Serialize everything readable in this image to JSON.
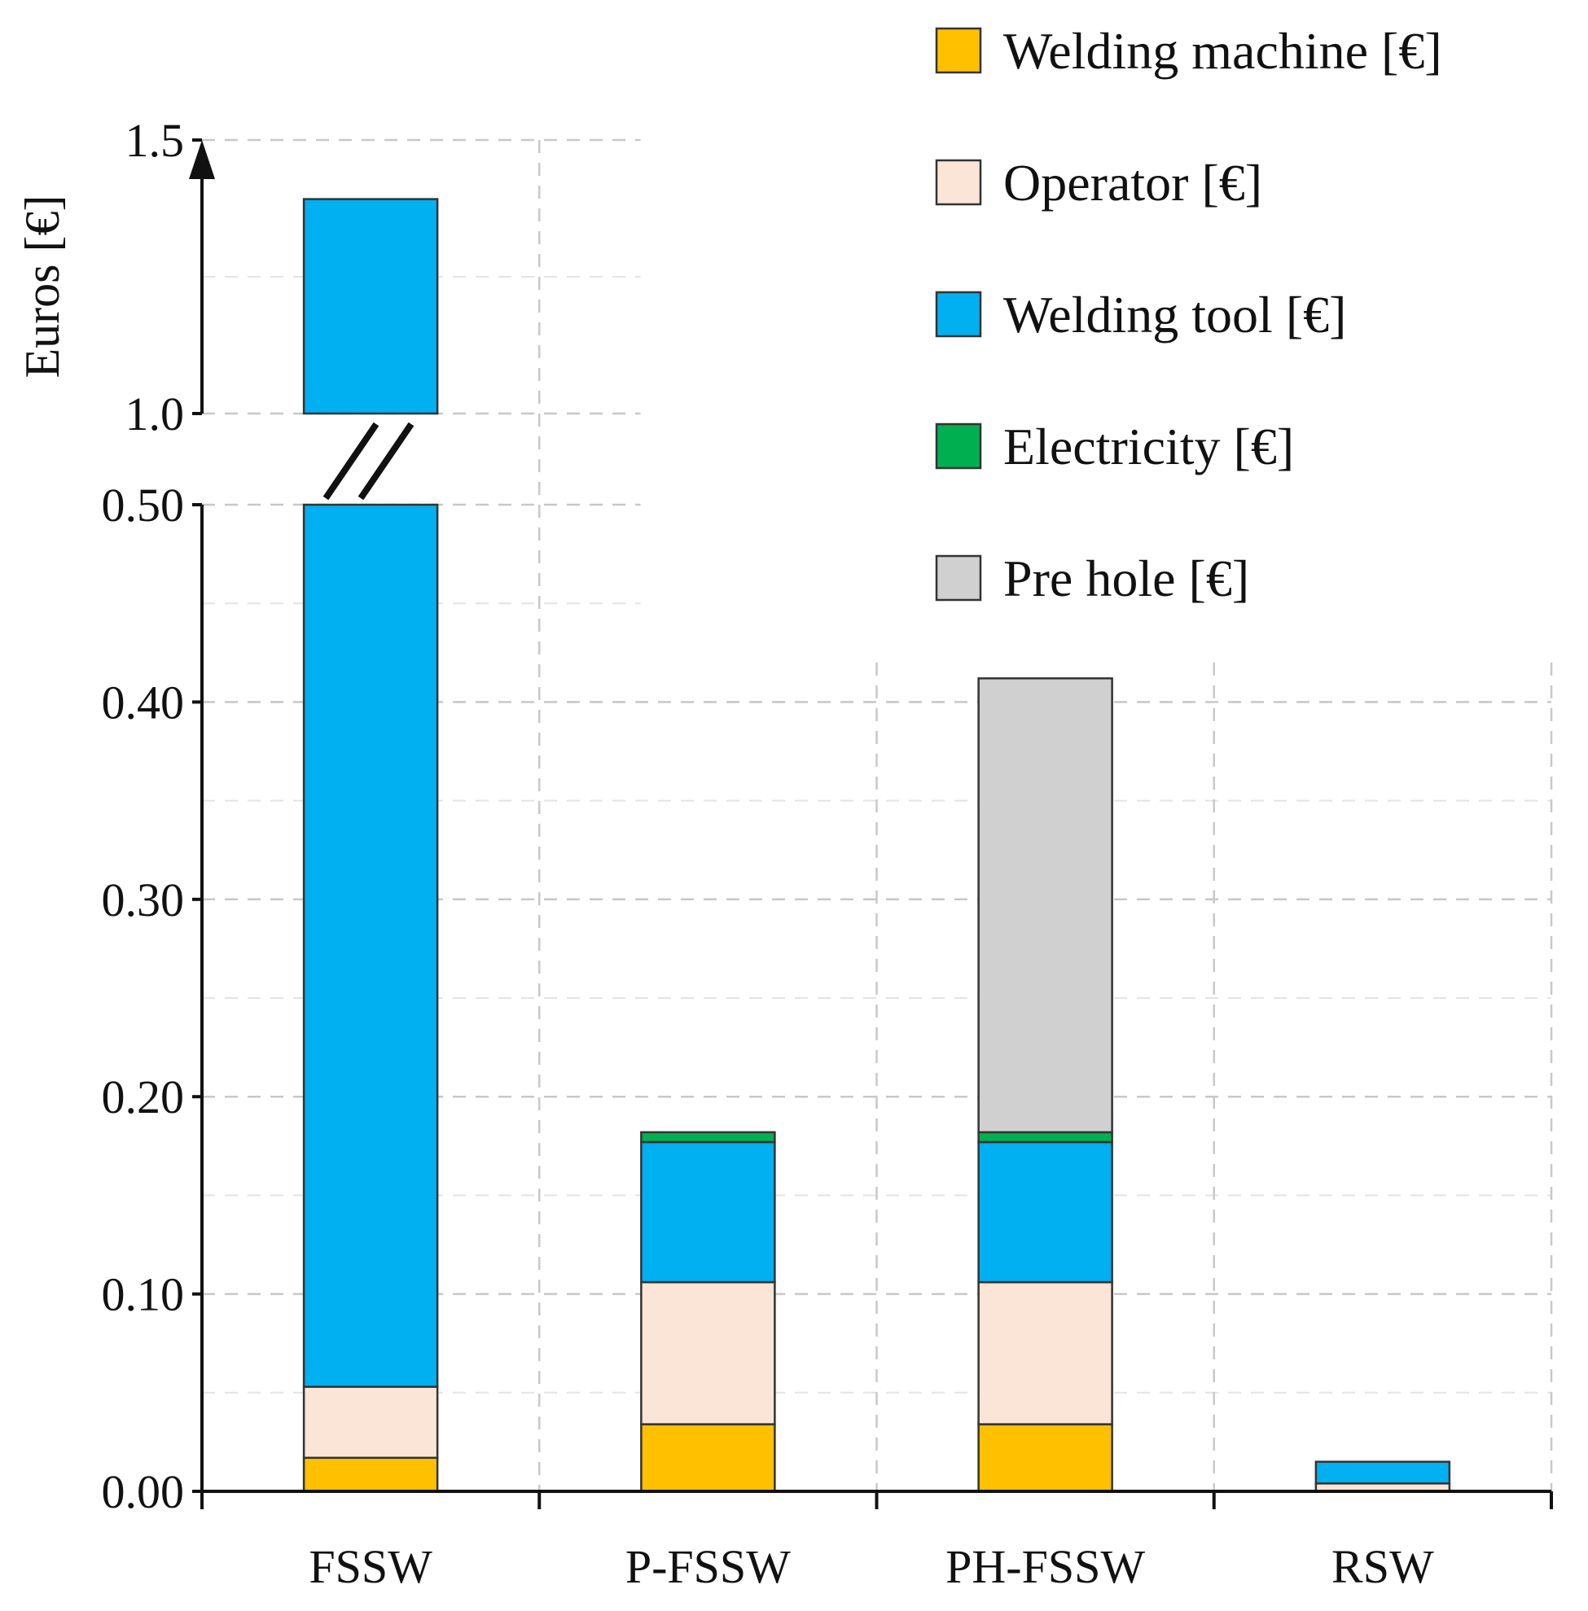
{
  "chart_data": {
    "type": "bar",
    "stacked": true,
    "broken_y_axis": true,
    "title": "",
    "xlabel": "",
    "ylabel": "Euros [€]",
    "categories": [
      "FSSW",
      "P-FSSW",
      "PH-FSSW",
      "RSW"
    ],
    "ylim_lower": [
      0,
      0.5
    ],
    "ylim_upper": [
      1.0,
      1.5
    ],
    "yticks_lower": [
      "0.00",
      "0.10",
      "0.20",
      "0.30",
      "0.40",
      "0.50"
    ],
    "yticks_upper": [
      "1.0",
      "1.5"
    ],
    "series": [
      {
        "name": "Welding machine [€]",
        "color": "#ffc000",
        "values": [
          0.017,
          0.034,
          0.034,
          0.0
        ]
      },
      {
        "name": "Operator [€]",
        "color": "#fbe5d6",
        "values": [
          0.036,
          0.072,
          0.072,
          0.004
        ]
      },
      {
        "name": "Welding tool [€]",
        "color": "#00b0f0",
        "values": [
          1.339,
          0.071,
          0.071,
          0.011
        ]
      },
      {
        "name": "Electricity [€]",
        "color": "#00b050",
        "values": [
          0.0,
          0.005,
          0.005,
          0.0
        ]
      },
      {
        "name": "Pre hole [€]",
        "color": "#d0d0d0",
        "values": [
          0.0,
          0.0,
          0.23,
          0.0
        ]
      }
    ],
    "legend_position": "top-right",
    "grid": true
  }
}
